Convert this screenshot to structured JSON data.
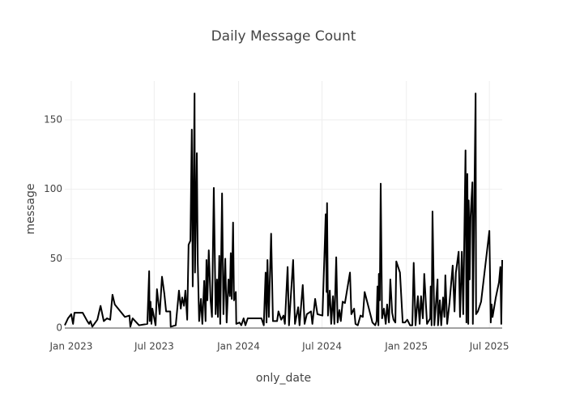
{
  "chart_data": {
    "type": "line",
    "title": "Daily Message Count",
    "x_label": "only_date",
    "y_label": "message",
    "color": "#000000",
    "grid": true,
    "xlim": [
      "2022-12-18",
      "2025-07-29"
    ],
    "xticks": [
      {
        "value": "2023-01-01",
        "label": "Jan 2023"
      },
      {
        "value": "2023-07-01",
        "label": "Jul 2023"
      },
      {
        "value": "2024-01-01",
        "label": "Jan 2024"
      },
      {
        "value": "2024-07-01",
        "label": "Jul 2024"
      },
      {
        "value": "2025-01-01",
        "label": "Jan 2025"
      },
      {
        "value": "2025-07-01",
        "label": "Jul 2025"
      }
    ],
    "ylim": [
      0,
      178
    ],
    "yticks": [
      0,
      50,
      100,
      150
    ],
    "x": [
      "2022-12-18",
      "2022-12-25",
      "2023-01-01",
      "2023-01-05",
      "2023-01-08",
      "2023-01-26",
      "2023-02-05",
      "2023-02-09",
      "2023-02-12",
      "2023-02-16",
      "2023-02-27",
      "2023-03-06",
      "2023-03-13",
      "2023-03-20",
      "2023-03-27",
      "2023-04-01",
      "2023-04-06",
      "2023-04-28",
      "2023-05-08",
      "2023-05-10",
      "2023-05-15",
      "2023-05-29",
      "2023-06-16",
      "2023-06-20",
      "2023-06-21",
      "2023-06-23",
      "2023-06-25",
      "2023-06-27",
      "2023-07-04",
      "2023-07-07",
      "2023-07-13",
      "2023-07-18",
      "2023-07-23",
      "2023-07-27",
      "2023-08-05",
      "2023-08-06",
      "2023-08-17",
      "2023-08-24",
      "2023-08-28",
      "2023-08-31",
      "2023-09-04",
      "2023-09-07",
      "2023-09-11",
      "2023-09-14",
      "2023-09-18",
      "2023-09-21",
      "2023-09-23",
      "2023-09-27",
      "2023-09-28",
      "2023-10-02",
      "2023-10-04",
      "2023-10-07",
      "2023-10-11",
      "2023-10-14",
      "2023-10-18",
      "2023-10-21",
      "2023-10-23",
      "2023-10-25",
      "2023-10-28",
      "2023-11-01",
      "2023-11-04",
      "2023-11-08",
      "2023-11-12",
      "2023-11-15",
      "2023-11-17",
      "2023-11-20",
      "2023-11-22",
      "2023-11-26",
      "2023-11-29",
      "2023-12-03",
      "2023-12-06",
      "2023-12-10",
      "2023-12-13",
      "2023-12-15",
      "2023-12-17",
      "2023-12-20",
      "2023-12-22",
      "2023-12-26",
      "2023-12-27",
      "2024-01-03",
      "2024-01-07",
      "2024-01-12",
      "2024-01-16",
      "2024-01-21",
      "2024-02-20",
      "2024-02-25",
      "2024-02-29",
      "2024-03-02",
      "2024-03-04",
      "2024-03-07",
      "2024-03-12",
      "2024-03-16",
      "2024-03-25",
      "2024-03-28",
      "2024-04-03",
      "2024-04-08",
      "2024-04-11",
      "2024-04-17",
      "2024-04-20",
      "2024-04-29",
      "2024-05-03",
      "2024-05-10",
      "2024-05-13",
      "2024-05-20",
      "2024-05-24",
      "2024-05-29",
      "2024-06-07",
      "2024-06-10",
      "2024-06-16",
      "2024-06-21",
      "2024-07-02",
      "2024-07-07",
      "2024-07-09",
      "2024-07-11",
      "2024-07-12",
      "2024-07-14",
      "2024-07-18",
      "2024-07-21",
      "2024-07-25",
      "2024-07-28",
      "2024-08-01",
      "2024-08-04",
      "2024-08-08",
      "2024-08-11",
      "2024-08-15",
      "2024-08-20",
      "2024-08-31",
      "2024-09-03",
      "2024-09-09",
      "2024-09-12",
      "2024-09-17",
      "2024-09-23",
      "2024-09-28",
      "2024-10-02",
      "2024-10-09",
      "2024-10-19",
      "2024-10-25",
      "2024-10-28",
      "2024-10-30",
      "2024-11-01",
      "2024-11-02",
      "2024-11-04",
      "2024-11-06",
      "2024-11-09",
      "2024-11-13",
      "2024-11-17",
      "2024-11-20",
      "2024-11-24",
      "2024-11-27",
      "2024-12-01",
      "2024-12-04",
      "2024-12-08",
      "2024-12-10",
      "2024-12-18",
      "2024-12-24",
      "2024-12-29",
      "2025-01-03",
      "2025-01-09",
      "2025-01-14",
      "2025-01-17",
      "2025-01-21",
      "2025-01-26",
      "2025-01-30",
      "2025-02-02",
      "2025-02-06",
      "2025-02-09",
      "2025-02-15",
      "2025-02-22",
      "2025-02-23",
      "2025-02-25",
      "2025-02-27",
      "2025-03-03",
      "2025-03-06",
      "2025-03-10",
      "2025-03-11",
      "2025-03-15",
      "2025-03-18",
      "2025-03-22",
      "2025-03-25",
      "2025-03-27",
      "2025-03-31",
      "2025-04-05",
      "2025-04-12",
      "2025-04-16",
      "2025-04-19",
      "2025-04-25",
      "2025-04-28",
      "2025-05-02",
      "2025-05-05",
      "2025-05-10",
      "2025-05-12",
      "2025-05-14",
      "2025-05-16",
      "2025-05-17",
      "2025-05-19",
      "2025-05-21",
      "2025-05-25",
      "2025-05-26",
      "2025-06-01",
      "2025-06-02",
      "2025-06-06",
      "2025-06-13",
      "2025-07-01",
      "2025-07-04",
      "2025-07-06",
      "2025-07-08",
      "2025-07-15",
      "2025-07-22",
      "2025-07-25",
      "2025-07-27",
      "2025-07-29"
    ],
    "values": [
      2,
      7,
      10,
      3,
      11,
      11,
      5,
      3,
      5,
      1,
      6,
      16,
      5,
      7,
      6,
      24,
      17,
      8,
      9,
      1,
      7,
      2,
      3,
      41,
      5,
      19,
      3,
      14,
      2,
      28,
      10,
      37,
      25,
      12,
      12,
      1,
      2,
      27,
      14,
      22,
      16,
      27,
      6,
      60,
      63,
      143,
      30,
      169,
      40,
      126,
      47,
      5,
      21,
      3,
      34,
      5,
      49,
      20,
      56,
      20,
      8,
      101,
      10,
      35,
      8,
      52,
      3,
      97,
      10,
      50,
      4,
      35,
      23,
      54,
      21,
      76,
      20,
      26,
      3,
      4,
      2,
      7,
      2,
      7,
      7,
      2,
      40,
      4,
      49,
      8,
      68,
      5,
      5,
      12,
      6,
      9,
      3,
      44,
      2,
      49,
      3,
      15,
      2,
      31,
      3,
      10,
      12,
      3,
      21,
      10,
      9,
      60,
      82,
      26,
      90,
      9,
      27,
      3,
      23,
      3,
      51,
      4,
      13,
      5,
      19,
      18,
      40,
      10,
      14,
      3,
      2,
      9,
      8,
      26,
      17,
      4,
      2,
      5,
      30,
      2,
      39,
      20,
      104,
      7,
      14,
      3,
      17,
      4,
      35,
      11,
      6,
      4,
      48,
      40,
      4,
      4,
      6,
      2,
      2,
      47,
      2,
      23,
      3,
      23,
      7,
      39,
      3,
      7,
      30,
      2,
      84,
      2,
      15,
      35,
      2,
      20,
      2,
      22,
      8,
      38,
      3,
      18,
      45,
      12,
      40,
      55,
      8,
      55,
      10,
      128,
      4,
      111,
      3,
      92,
      35,
      80,
      105,
      3,
      169,
      10,
      12,
      19,
      70,
      4,
      17,
      8,
      22,
      33,
      44,
      3,
      49
    ]
  }
}
